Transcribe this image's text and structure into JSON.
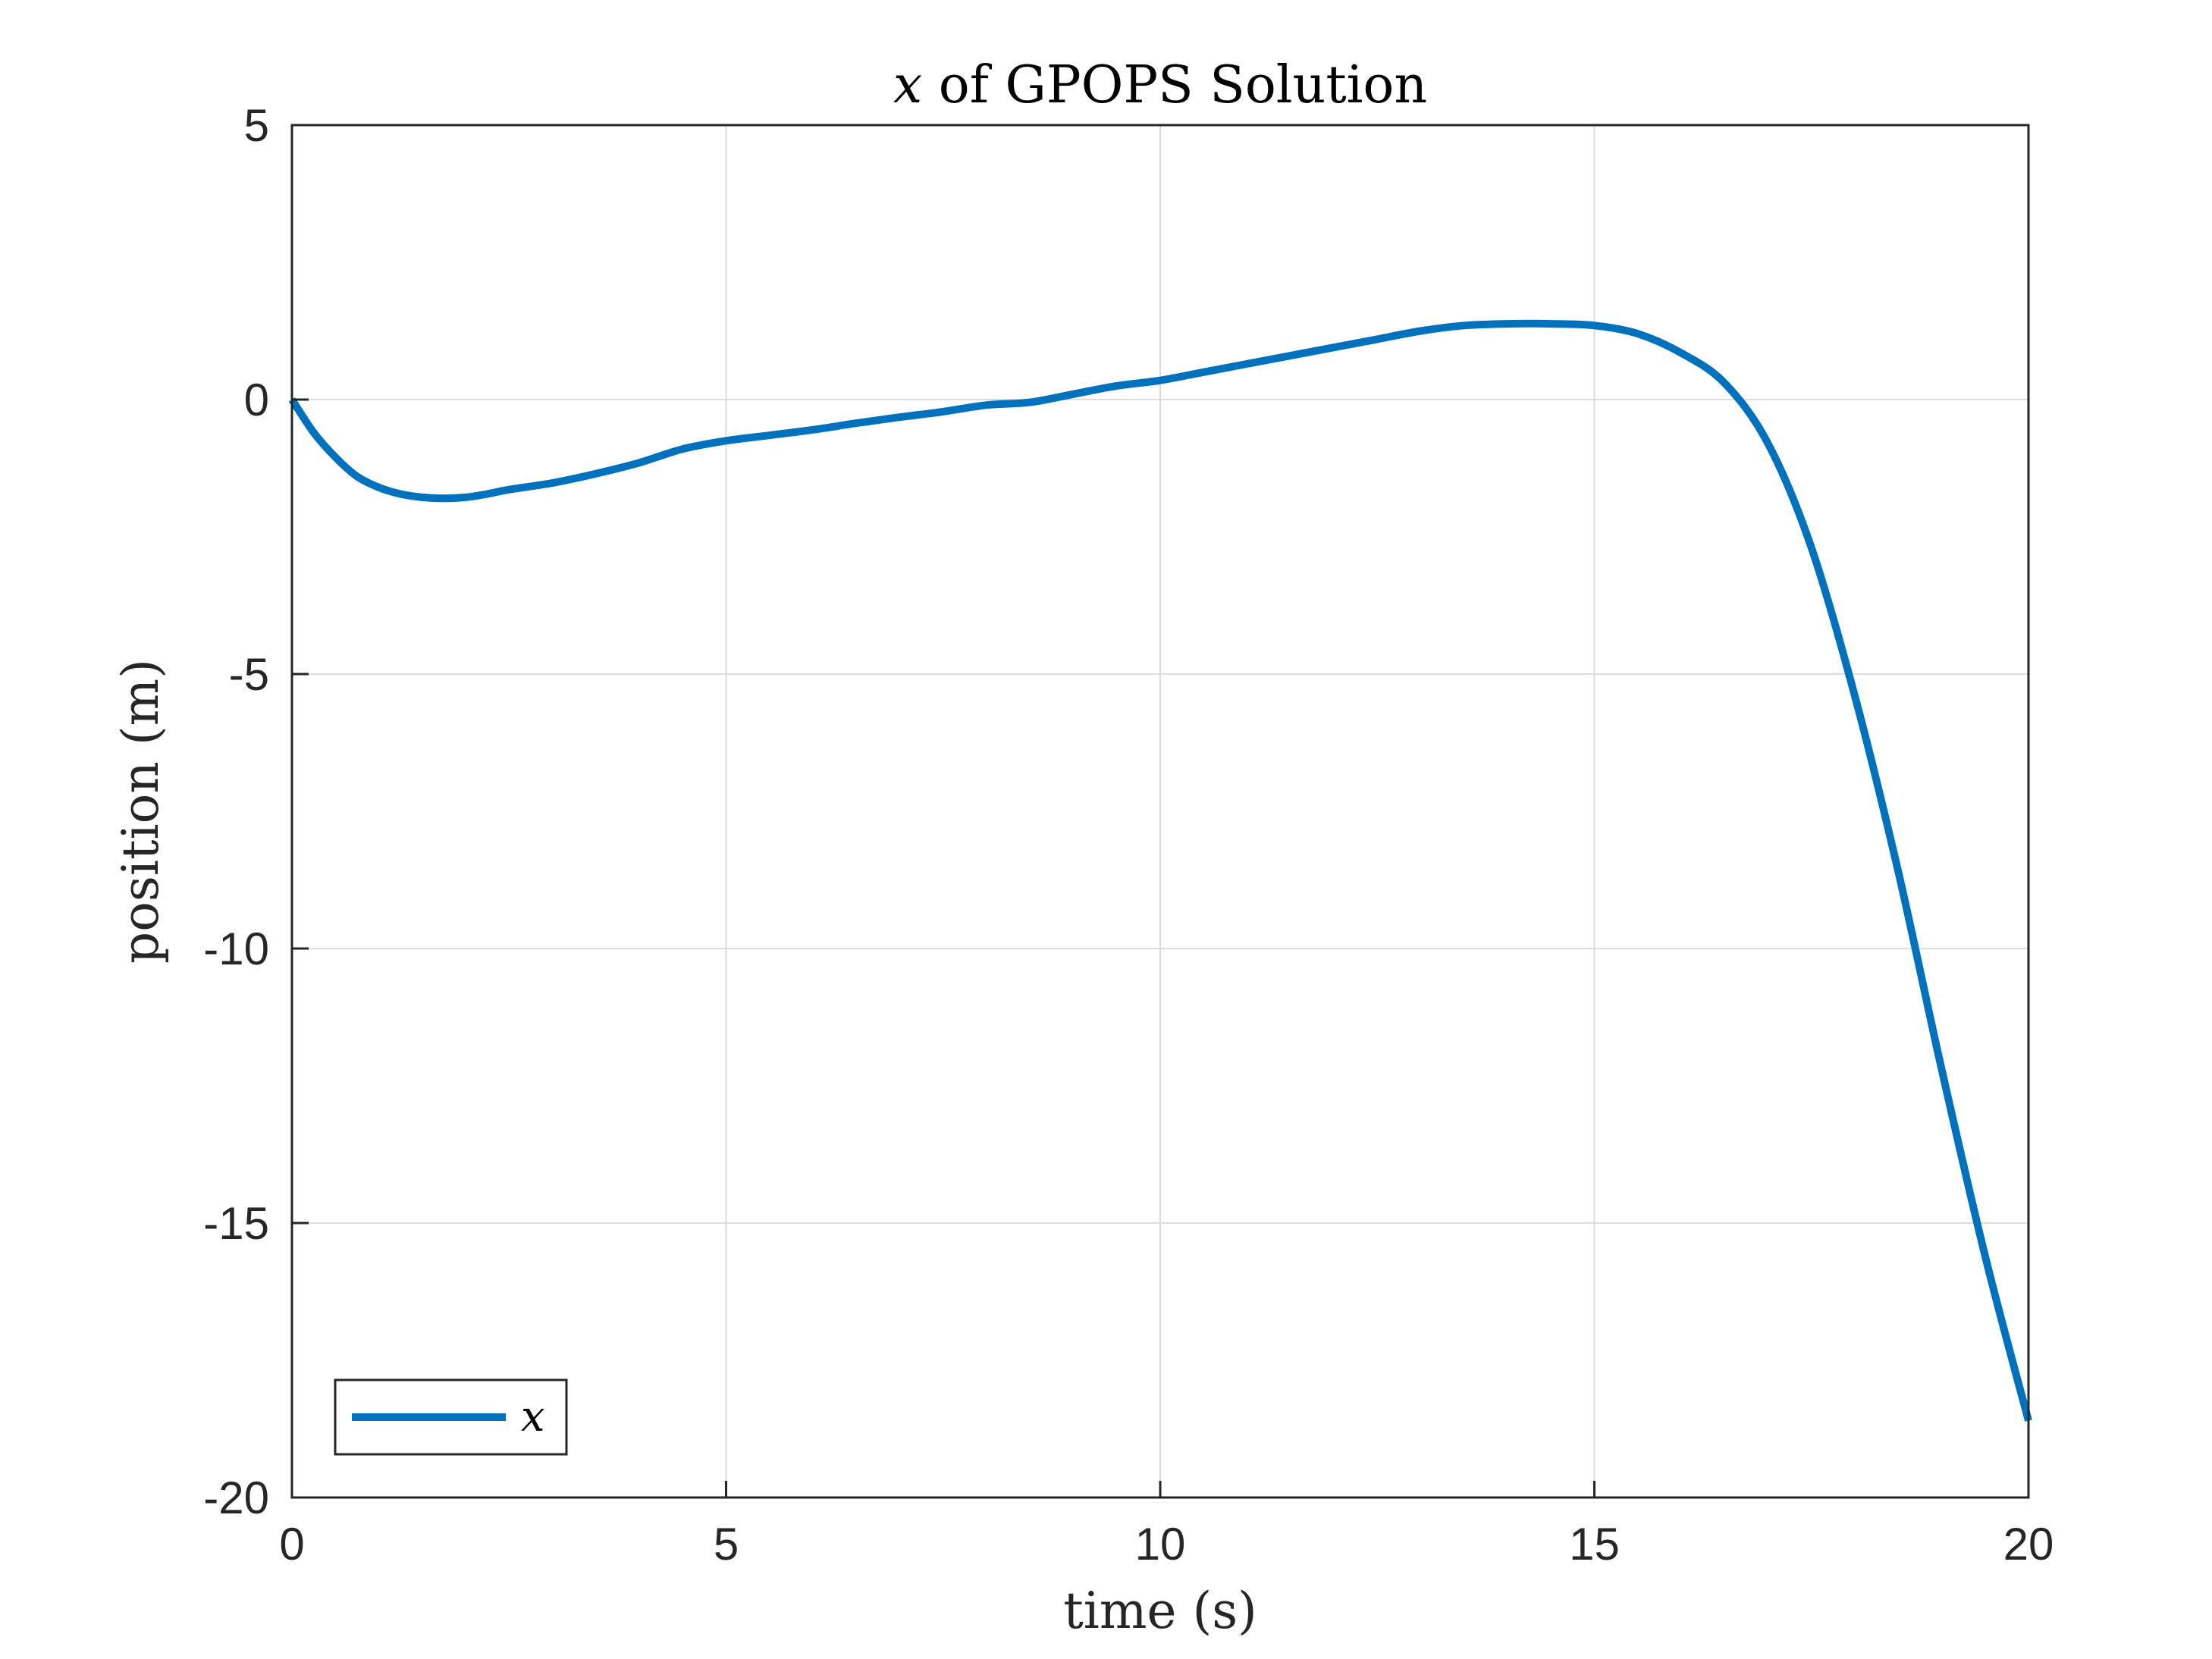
{
  "chart_data": {
    "type": "line",
    "title": {
      "var": "x",
      "rest": " of GPOPS Solution"
    },
    "xlabel": "time (s)",
    "ylabel": "position (m)",
    "xlim": [
      0,
      20
    ],
    "ylim": [
      -20,
      5
    ],
    "xticks": [
      0,
      5,
      10,
      15,
      20
    ],
    "yticks": [
      5,
      0,
      -5,
      -10,
      -15,
      -20
    ],
    "xtick_labels": [
      "0",
      "5",
      "10",
      "15",
      "20"
    ],
    "ytick_labels": [
      "5",
      "0",
      "-5",
      "-10",
      "-15",
      "-20"
    ],
    "grid": true,
    "legend_position": "bottom-left",
    "series": [
      {
        "name": "x",
        "color": "#0072BD",
        "x": [
          0,
          0.25,
          0.5,
          0.75,
          1.0,
          1.25,
          1.5,
          1.75,
          2.0,
          2.25,
          2.5,
          3.0,
          3.5,
          4.0,
          4.5,
          5.0,
          5.5,
          6.0,
          6.5,
          7.0,
          7.5,
          8.0,
          8.5,
          9.0,
          9.5,
          10.0,
          10.5,
          11.0,
          11.5,
          12.0,
          12.5,
          13.0,
          13.5,
          14.0,
          14.5,
          15.0,
          15.5,
          16.0,
          16.5,
          17.0,
          17.5,
          18.0,
          18.5,
          19.0,
          19.5,
          20.0
        ],
        "y": [
          0,
          -0.6,
          -1.05,
          -1.4,
          -1.6,
          -1.72,
          -1.78,
          -1.8,
          -1.78,
          -1.72,
          -1.64,
          -1.52,
          -1.35,
          -1.15,
          -0.9,
          -0.75,
          -0.65,
          -0.55,
          -0.43,
          -0.32,
          -0.22,
          -0.1,
          -0.05,
          0.1,
          0.25,
          0.35,
          0.5,
          0.65,
          0.8,
          0.95,
          1.1,
          1.25,
          1.35,
          1.38,
          1.38,
          1.35,
          1.2,
          0.85,
          0.3,
          -0.8,
          -2.7,
          -5.4,
          -8.6,
          -12.2,
          -15.6,
          -18.6
        ]
      }
    ]
  }
}
